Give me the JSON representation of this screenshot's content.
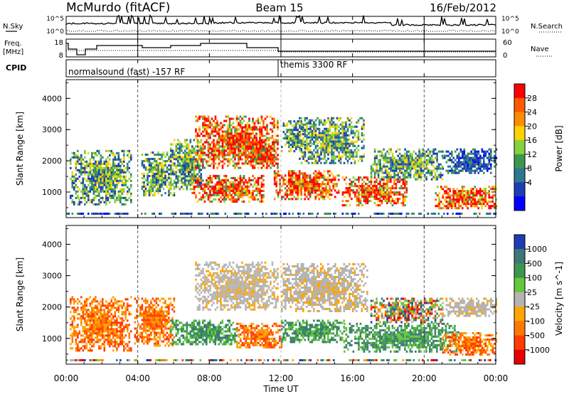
{
  "header": {
    "station": "McMurdo (fitACF)",
    "beam": "Beam 15",
    "date": "16/Feb/2012"
  },
  "status_panel": {
    "nsky_label": "N.Sky",
    "nsearch_label": "N.Search",
    "freq_label_1": "Freq.",
    "freq_label_2": "[MHz]",
    "nave_label": "Nave",
    "cpid_label": "CPID",
    "noise_ticks": [
      "10^5",
      "10^0"
    ],
    "freq_ticks": [
      "18",
      "8"
    ],
    "nave_ticks": [
      "60",
      "0"
    ],
    "cpid_modes": [
      "normalsound (fast) -157 RF",
      "themis 3300 RF"
    ]
  },
  "chart_data": {
    "type": "heatmap",
    "x_axis": {
      "label": "Time UT",
      "ticks": [
        "00:00",
        "04:00",
        "08:00",
        "12:00",
        "16:00",
        "20:00",
        "00:00"
      ],
      "range_hours": [
        0,
        24
      ]
    },
    "y_axis": {
      "label": "Slant Range [km]",
      "ticks": [
        1000,
        2000,
        3000,
        4000
      ],
      "range_km": [
        180,
        4600
      ]
    },
    "panels": [
      {
        "name": "power",
        "colorbar_label": "Power [dB]",
        "colorbar_ticks": [
          "28",
          "24",
          "20",
          "16",
          "12",
          "8",
          "4"
        ],
        "colorbar_colors": [
          "#ff0000",
          "#ff5a00",
          "#ff8c00",
          "#ffd200",
          "#82d23c",
          "#3c9650",
          "#2d7890",
          "#1e3cb4",
          "#0000ff"
        ],
        "scatter_regions": [
          {
            "t0": 0.2,
            "t1": 3.6,
            "r0": 600,
            "r1": 2350,
            "level": "mid"
          },
          {
            "t0": 4.2,
            "t1": 6.0,
            "r0": 900,
            "r1": 2300,
            "level": "mid"
          },
          {
            "t0": 5.8,
            "t1": 7.6,
            "r0": 1100,
            "r1": 2700,
            "level": "mid"
          },
          {
            "t0": 7.2,
            "t1": 11.8,
            "r0": 1800,
            "r1": 3450,
            "level": "high"
          },
          {
            "t0": 9.8,
            "t1": 11.8,
            "r0": 1900,
            "r1": 2700,
            "level": "high"
          },
          {
            "t0": 7.0,
            "t1": 11.0,
            "r0": 700,
            "r1": 1550,
            "level": "high"
          },
          {
            "t0": 11.6,
            "t1": 15.2,
            "r0": 800,
            "r1": 1700,
            "level": "high"
          },
          {
            "t0": 12.0,
            "t1": 13.6,
            "r0": 2300,
            "r1": 3300,
            "level": "mid"
          },
          {
            "t0": 13.0,
            "t1": 16.6,
            "r0": 1900,
            "r1": 3400,
            "level": "mid"
          },
          {
            "t0": 15.4,
            "t1": 19.0,
            "r0": 600,
            "r1": 1500,
            "level": "high"
          },
          {
            "t0": 17.0,
            "t1": 21.0,
            "r0": 1400,
            "r1": 2400,
            "level": "mid"
          },
          {
            "t0": 20.6,
            "t1": 24.0,
            "r0": 500,
            "r1": 1200,
            "level": "high"
          },
          {
            "t0": 21.0,
            "t1": 24.0,
            "r0": 1600,
            "r1": 2400,
            "level": "low"
          }
        ]
      },
      {
        "name": "velocity",
        "colorbar_label": "Velocity [m s^-1]",
        "colorbar_ticks": [
          "1000",
          "500",
          "100",
          "25",
          "-25",
          "-100",
          "-500",
          "-1000"
        ],
        "colorbar_colors": [
          "#1e3cb4",
          "#3c7878",
          "#3c9650",
          "#64c83c",
          "#b4b4b4",
          "#ffa500",
          "#ff7800",
          "#ff3c00",
          "#e60000"
        ],
        "scatter_regions": [
          {
            "t0": 0.2,
            "t1": 3.6,
            "r0": 600,
            "r1": 2350,
            "level": "neg"
          },
          {
            "t0": 3.8,
            "t1": 6.0,
            "r0": 800,
            "r1": 2300,
            "level": "neg"
          },
          {
            "t0": 5.8,
            "t1": 9.5,
            "r0": 800,
            "r1": 1600,
            "level": "pos"
          },
          {
            "t0": 7.2,
            "t1": 11.8,
            "r0": 1900,
            "r1": 3450,
            "level": "zero"
          },
          {
            "t0": 9.5,
            "t1": 12.0,
            "r0": 700,
            "r1": 1500,
            "level": "neg"
          },
          {
            "t0": 12.0,
            "t1": 16.8,
            "r0": 1900,
            "r1": 3400,
            "level": "zero"
          },
          {
            "t0": 12.0,
            "t1": 15.5,
            "r0": 900,
            "r1": 1600,
            "level": "pos"
          },
          {
            "t0": 15.5,
            "t1": 22.0,
            "r0": 600,
            "r1": 1500,
            "level": "pos"
          },
          {
            "t0": 17.0,
            "t1": 21.0,
            "r0": 1500,
            "r1": 2300,
            "level": "mixed"
          },
          {
            "t0": 21.0,
            "t1": 24.0,
            "r0": 500,
            "r1": 1200,
            "level": "neg"
          },
          {
            "t0": 21.0,
            "t1": 24.0,
            "r0": 1700,
            "r1": 2300,
            "level": "zero"
          }
        ]
      }
    ],
    "vertical_markers_hours": [
      4,
      12,
      20
    ]
  }
}
